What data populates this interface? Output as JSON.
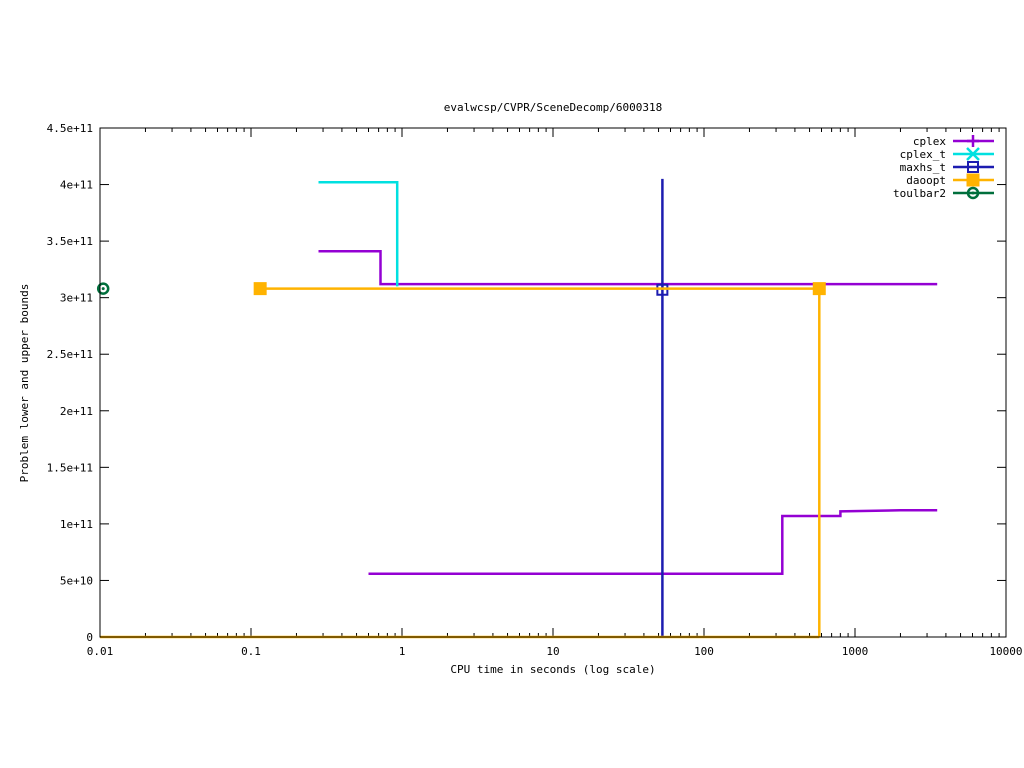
{
  "chart_data": {
    "type": "line",
    "title": "evalwcsp/CVPR/SceneDecomp/6000318",
    "xlabel": "CPU time in seconds (log scale)",
    "ylabel": "Problem lower and upper bounds",
    "xscale": "log",
    "xlim": [
      0.01,
      10000
    ],
    "ylim": [
      0,
      450000000000
    ],
    "xticks": [
      0.01,
      0.1,
      1,
      10,
      100,
      1000,
      10000
    ],
    "xtick_labels": [
      "0.01",
      "0.1",
      "1",
      "10",
      "100",
      "1000",
      "10000"
    ],
    "yticks": [
      0,
      50000000000,
      100000000000,
      150000000000,
      200000000000,
      250000000000,
      300000000000,
      350000000000,
      400000000000,
      450000000000
    ],
    "ytick_labels": [
      "0",
      "5e+10",
      "1e+11",
      "1.5e+11",
      "2e+11",
      "2.5e+11",
      "3e+11",
      "3.5e+11",
      "4e+11",
      "4.5e+11"
    ],
    "grid": false,
    "legend_position": "top-right",
    "series": [
      {
        "name": "cplex",
        "color": "#9400d3",
        "marker": "plus",
        "segments": [
          {
            "step": true,
            "x": [
              0.28,
              0.72,
              0.72,
              3500
            ],
            "y": [
              341000000000,
              341000000000,
              312000000000,
              312000000000
            ]
          },
          {
            "step": true,
            "x": [
              0.6,
              330,
              330,
              800,
              800,
              2000,
              3500
            ],
            "y": [
              56000000000,
              56000000000,
              107000000000,
              107000000000,
              111000000000,
              112000000000,
              112000000000
            ]
          }
        ]
      },
      {
        "name": "cplex_t",
        "color": "#00e0e0",
        "marker": "cross",
        "segments": [
          {
            "step": true,
            "x": [
              0.28,
              0.93,
              0.93
            ],
            "y": [
              402000000000,
              402000000000,
              310000000000
            ]
          }
        ]
      },
      {
        "name": "maxhs_t",
        "color": "#1c1cb0",
        "marker": "square",
        "segments": [
          {
            "step": false,
            "x": [
              53,
              53
            ],
            "y": [
              405000000000,
              0
            ]
          }
        ],
        "points": [
          {
            "x": 53,
            "y": 307000000000
          }
        ]
      },
      {
        "name": "daoopt",
        "color": "#ffb300",
        "marker": "filled-square",
        "segments": [
          {
            "step": false,
            "x": [
              0.115,
              580,
              580
            ],
            "y": [
              308000000000,
              308000000000,
              0
            ]
          },
          {
            "step": false,
            "x": [
              0.01,
              580
            ],
            "y": [
              0,
              0
            ]
          }
        ],
        "points": [
          {
            "x": 0.115,
            "y": 308000000000
          },
          {
            "x": 580,
            "y": 308000000000
          }
        ]
      },
      {
        "name": "toulbar2",
        "color": "#006f3c",
        "marker": "circle",
        "segments": [],
        "points": [
          {
            "x": 0.0105,
            "y": 308000000000
          }
        ]
      }
    ]
  }
}
